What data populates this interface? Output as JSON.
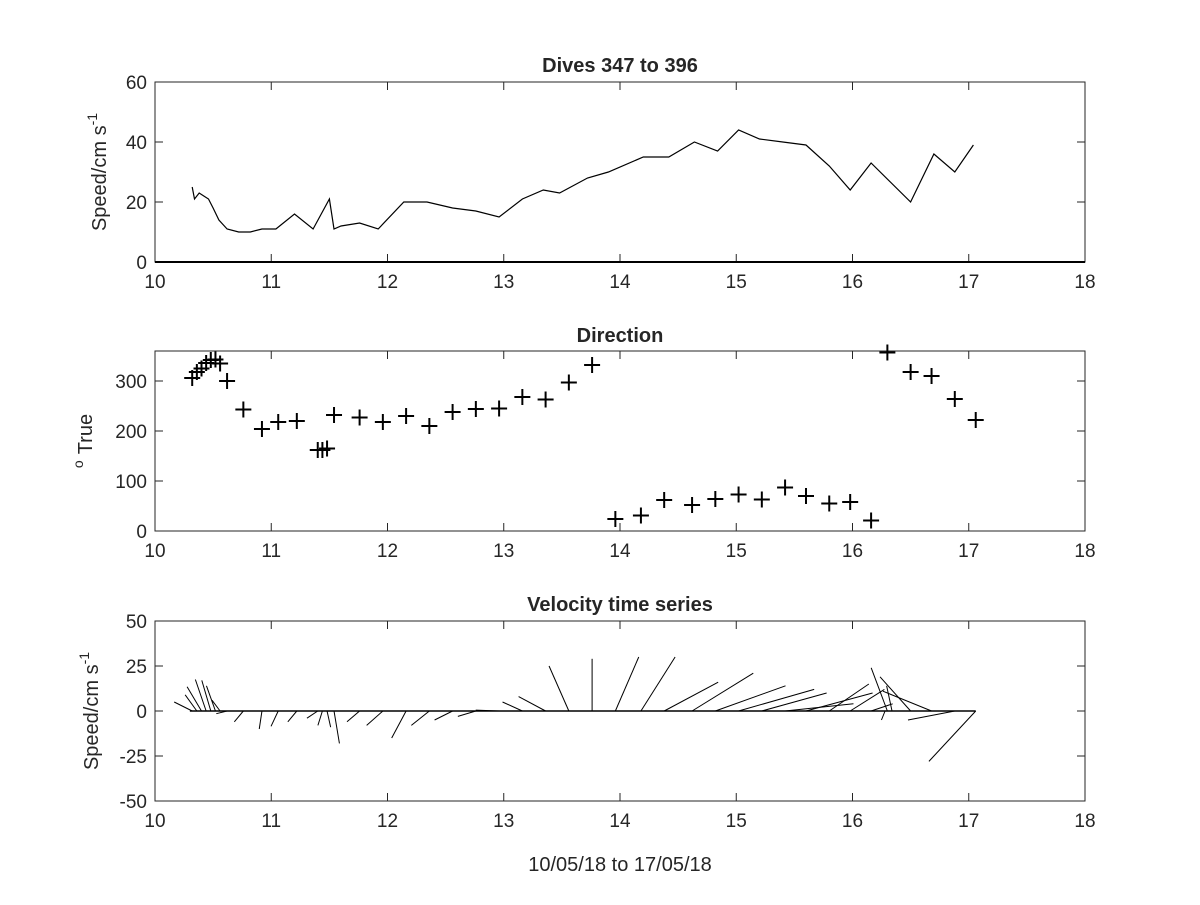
{
  "figure": {
    "chart_data": [
      {
        "type": "line",
        "title": "Dives 347 to 396",
        "xlabel": "",
        "ylabel": "Speed/cm s",
        "ylabel_superscript": "-1",
        "xlim": [
          10,
          18
        ],
        "ylim": [
          0,
          60
        ],
        "xticks": [
          "10",
          "11",
          "12",
          "13",
          "14",
          "15",
          "16",
          "17",
          "18"
        ],
        "yticks": [
          "0",
          "20",
          "40",
          "60"
        ],
        "grid": false,
        "series": [
          {
            "x": [
              10.32,
              10.34,
              10.38,
              10.42,
              10.46,
              10.5,
              10.55,
              10.62,
              10.72,
              10.82,
              10.92,
              11.04,
              11.2,
              11.36,
              11.5,
              11.54,
              11.6,
              11.76,
              11.92,
              12.14,
              12.34,
              12.56,
              12.76,
              12.96,
              13.16,
              13.34,
              13.48,
              13.72,
              13.9,
              14.2,
              14.42,
              14.64,
              14.84,
              15.02,
              15.2,
              15.4,
              15.6,
              15.8,
              15.98,
              16.16,
              16.5,
              16.7,
              16.88,
              17.04
            ],
            "y": [
              25,
              21,
              23,
              22,
              21,
              18,
              14,
              11,
              10,
              10,
              11,
              11,
              16,
              11,
              21,
              11,
              12,
              13,
              11,
              20,
              20,
              18,
              17,
              15,
              21,
              24,
              23,
              28,
              30,
              35,
              35,
              40,
              37,
              44,
              41,
              40,
              39,
              32,
              24,
              33,
              20,
              36,
              30,
              39
            ]
          }
        ]
      },
      {
        "type": "scatter",
        "title": "Direction",
        "xlabel": "",
        "ylabel": "True",
        "ylabel_prefix_superscript": "o",
        "xlim": [
          10,
          18
        ],
        "ylim": [
          0,
          360
        ],
        "xticks": [
          "10",
          "11",
          "12",
          "13",
          "14",
          "15",
          "16",
          "17",
          "18"
        ],
        "yticks": [
          "0",
          "100",
          "200",
          "300"
        ],
        "marker": "+",
        "grid": false,
        "series": [
          {
            "x": [
              10.32,
              10.36,
              10.4,
              10.44,
              10.48,
              10.52,
              10.56,
              10.62,
              10.76,
              10.92,
              11.06,
              11.22,
              11.4,
              11.44,
              11.48,
              11.54,
              11.76,
              11.96,
              12.16,
              12.36,
              12.56,
              12.76,
              12.96,
              13.16,
              13.36,
              13.56,
              13.76,
              13.96,
              14.18,
              14.38,
              14.62,
              14.82,
              15.02,
              15.22,
              15.42,
              15.6,
              15.8,
              15.98,
              16.16,
              16.3,
              16.5,
              16.68,
              16.88,
              17.06
            ],
            "y": [
              306,
              318,
              325,
              336,
              342,
              343,
              335,
              300,
              243,
              204,
              218,
              220,
              162,
              162,
              165,
              232,
              227,
              218,
              230,
              210,
              238,
              244,
              245,
              268,
              263,
              297,
              332,
              24,
              31,
              62,
              52,
              64,
              73,
              63,
              87,
              70,
              55,
              58,
              21,
              357,
              318,
              310,
              264,
              222
            ]
          }
        ]
      },
      {
        "type": "quiver",
        "title": "Velocity time series",
        "xlabel": "10/05/18 to 17/05/18",
        "ylabel": "Speed/cm s",
        "ylabel_superscript": "-1",
        "xlim": [
          10,
          18
        ],
        "ylim": [
          -50,
          50
        ],
        "xticks": [
          "10",
          "11",
          "12",
          "13",
          "14",
          "15",
          "16",
          "17",
          "18"
        ],
        "yticks": [
          "-50",
          "-25",
          "0",
          "25",
          "50"
        ],
        "grid": false,
        "vectors": [
          {
            "t": 10.32,
            "u": -10,
            "v": 5
          },
          {
            "t": 10.36,
            "u": -6.5,
            "v": 9
          },
          {
            "t": 10.4,
            "u": -8,
            "v": 13.5
          },
          {
            "t": 10.44,
            "u": -6,
            "v": 17.5
          },
          {
            "t": 10.48,
            "u": -5,
            "v": 17
          },
          {
            "t": 10.52,
            "u": -5,
            "v": 14
          },
          {
            "t": 10.56,
            "u": -4.5,
            "v": 6
          },
          {
            "t": 10.62,
            "u": -6,
            "v": -1.5
          },
          {
            "t": 10.76,
            "u": -5,
            "v": -6
          },
          {
            "t": 10.92,
            "u": -1.5,
            "v": -10
          },
          {
            "t": 11.06,
            "u": -4,
            "v": -8.5
          },
          {
            "t": 11.22,
            "u": -5,
            "v": -6
          },
          {
            "t": 11.4,
            "u": -6,
            "v": -4
          },
          {
            "t": 11.44,
            "u": -2.5,
            "v": -8
          },
          {
            "t": 11.48,
            "u": 2,
            "v": -9
          },
          {
            "t": 11.54,
            "u": 3,
            "v": -18
          },
          {
            "t": 11.76,
            "u": -7,
            "v": -6
          },
          {
            "t": 11.96,
            "u": -9,
            "v": -8
          },
          {
            "t": 12.16,
            "u": -8,
            "v": -15
          },
          {
            "t": 12.36,
            "u": -10,
            "v": -8
          },
          {
            "t": 12.56,
            "u": -10,
            "v": -5
          },
          {
            "t": 12.76,
            "u": -10,
            "v": -3
          },
          {
            "t": 12.96,
            "u": -13,
            "v": 0.5
          },
          {
            "t": 13.16,
            "u": -11,
            "v": 5
          },
          {
            "t": 13.36,
            "u": -15,
            "v": 8
          },
          {
            "t": 13.56,
            "u": -11,
            "v": 25
          },
          {
            "t": 13.76,
            "u": 0,
            "v": 29
          },
          {
            "t": 13.96,
            "u": 13,
            "v": 30
          },
          {
            "t": 14.18,
            "u": 19,
            "v": 30
          },
          {
            "t": 14.38,
            "u": 30,
            "v": 16
          },
          {
            "t": 14.62,
            "u": 34,
            "v": 21
          },
          {
            "t": 14.82,
            "u": 39,
            "v": 14
          },
          {
            "t": 15.02,
            "u": 42,
            "v": 12
          },
          {
            "t": 15.22,
            "u": 36,
            "v": 10
          },
          {
            "t": 15.42,
            "u": 38,
            "v": 4
          },
          {
            "t": 15.6,
            "u": 37,
            "v": 10
          },
          {
            "t": 15.8,
            "u": 22,
            "v": 15
          },
          {
            "t": 15.98,
            "u": 19,
            "v": 12
          },
          {
            "t": 16.16,
            "u": 12,
            "v": 4
          },
          {
            "t": 16.3,
            "u": -9,
            "v": 24
          },
          {
            "t": 16.5,
            "u": -17,
            "v": 19
          },
          {
            "t": 16.68,
            "u": -27,
            "v": 11
          },
          {
            "t": 16.88,
            "u": -26,
            "v": -5
          },
          {
            "t": 17.06,
            "u": -26,
            "v": -28
          },
          {
            "t": 16.28,
            "u": -2,
            "v": -5
          },
          {
            "t": 16.34,
            "u": -3,
            "v": 14
          }
        ]
      }
    ]
  }
}
